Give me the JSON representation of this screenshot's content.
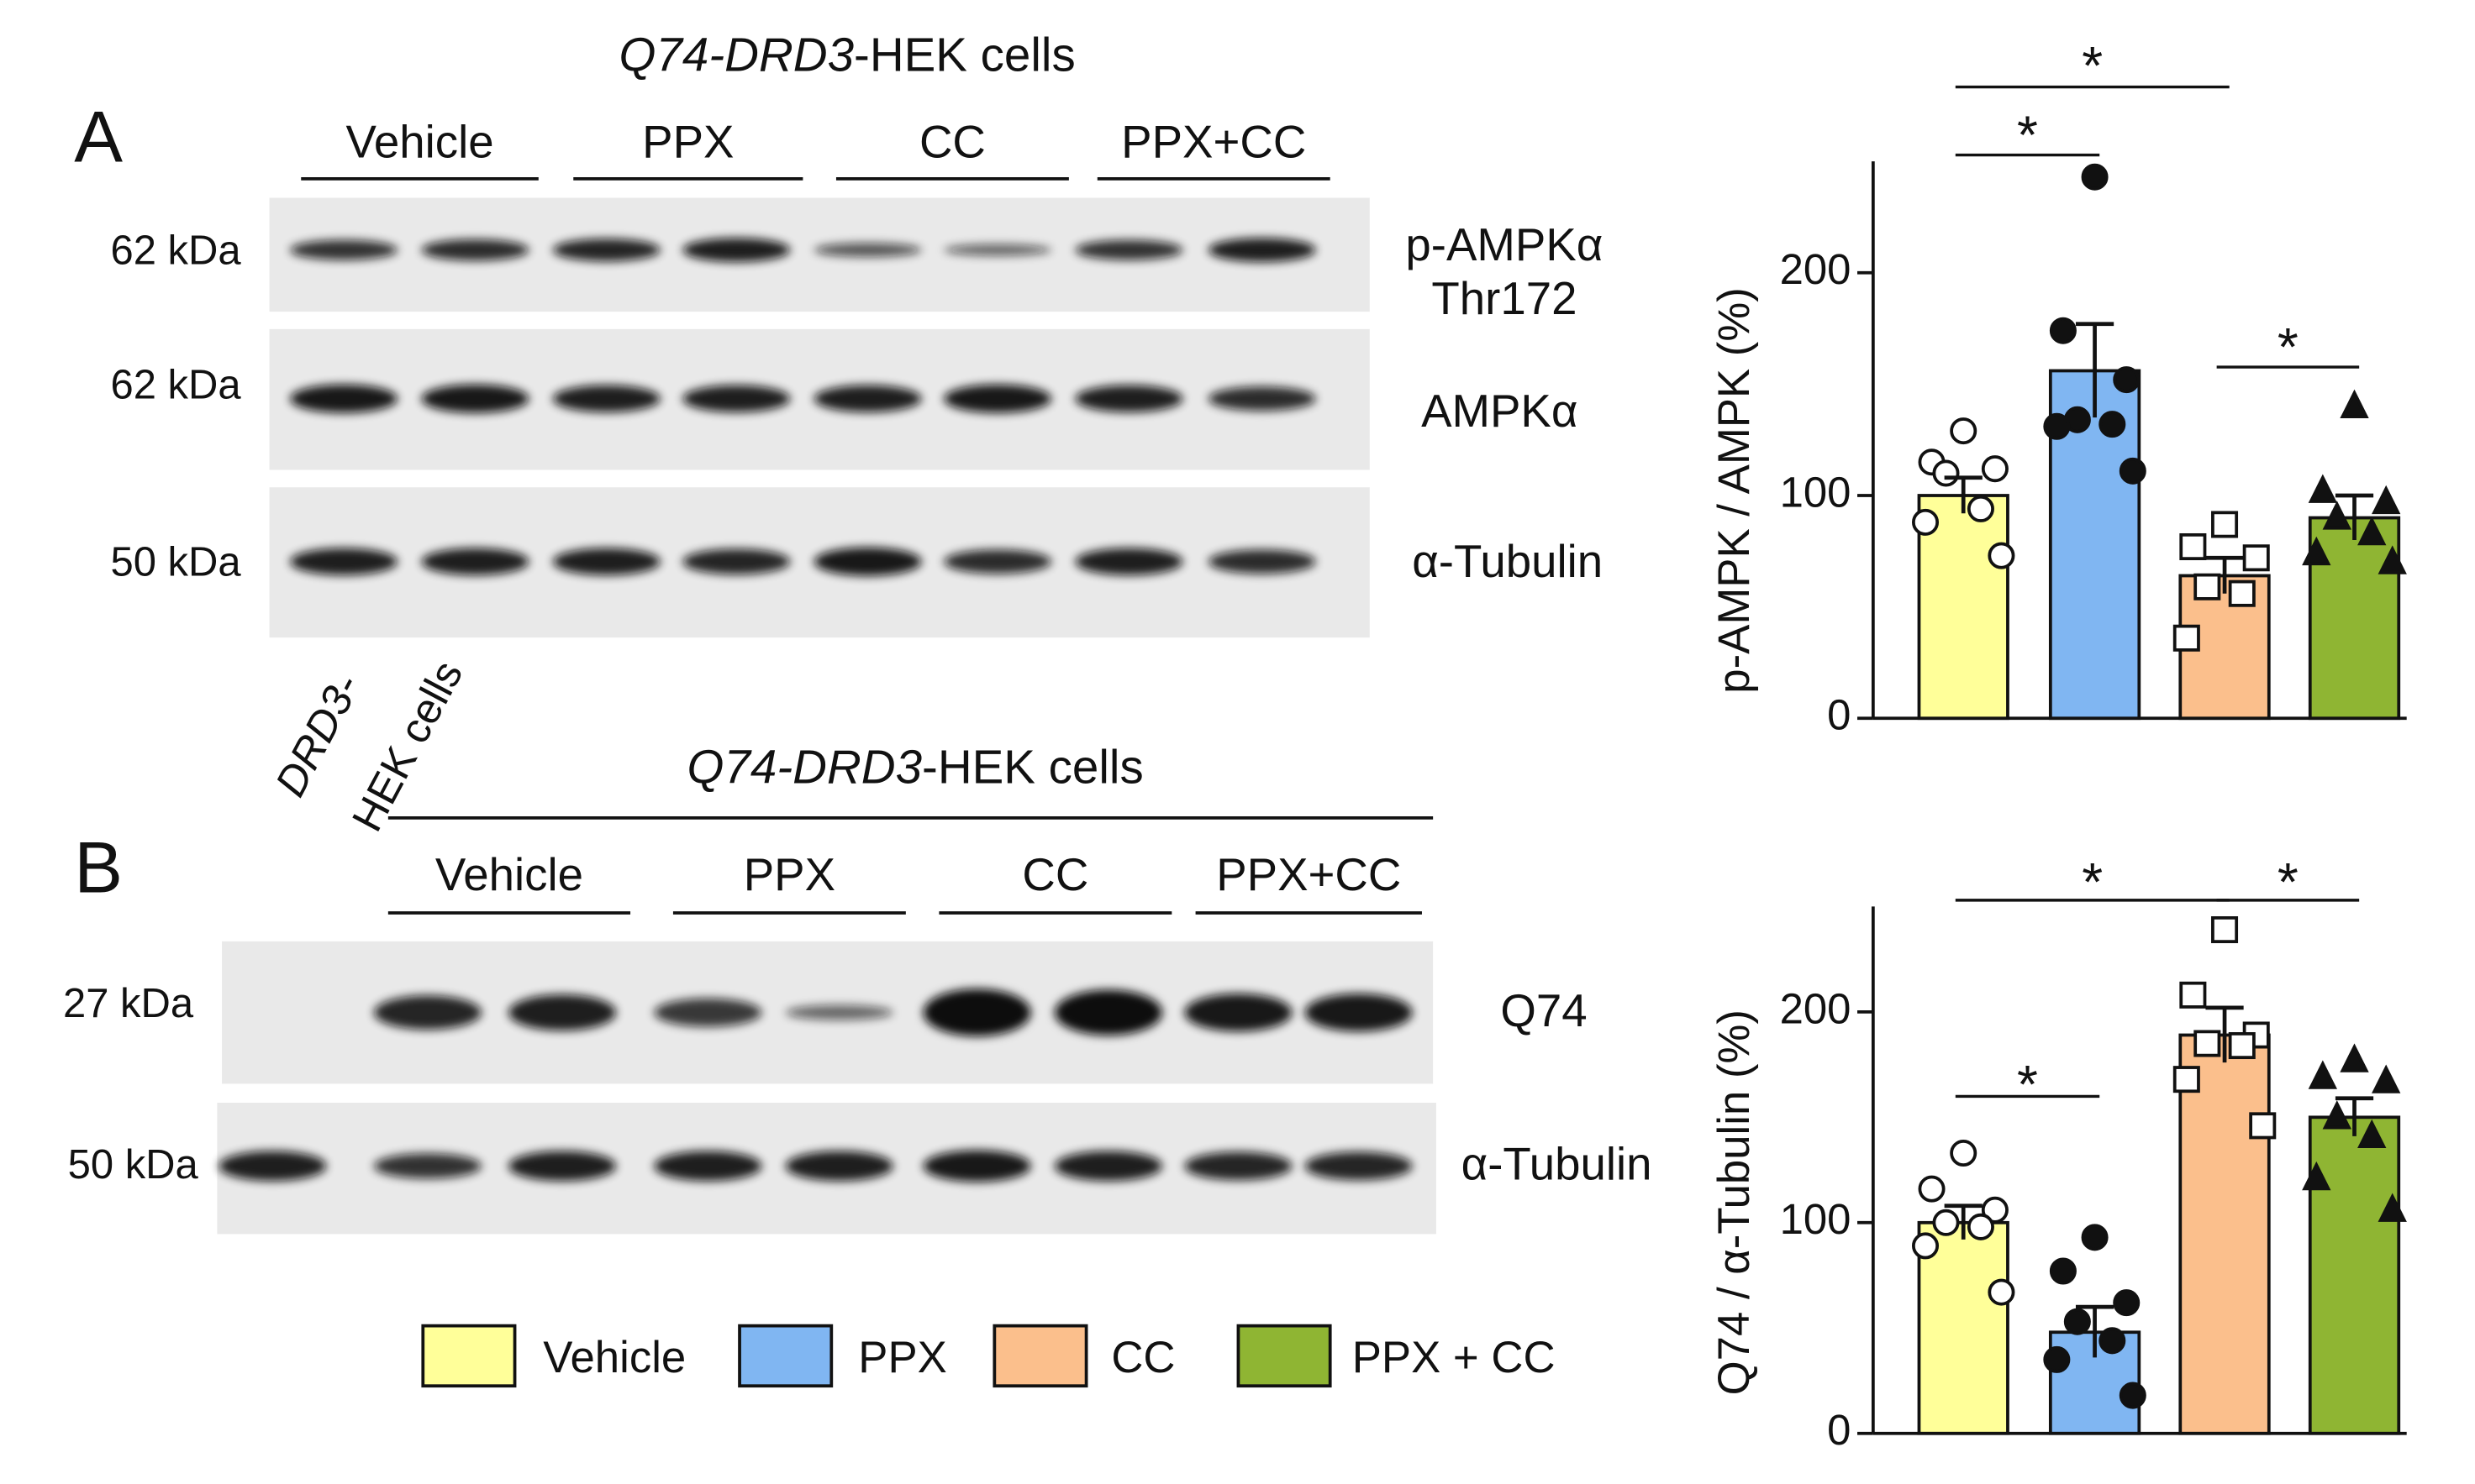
{
  "panels": [
    {
      "label": "A",
      "title_italic": "Q74-DRD3",
      "title": "-HEK cells",
      "groups": [
        "Vehicle",
        "PPX",
        "CC",
        "PPX+CC"
      ],
      "rows": [
        {
          "size": "62 kDa",
          "protein": [
            "p-AMPKα",
            "Thr172"
          ]
        },
        {
          "size": "62 kDa",
          "protein": [
            "AMPKα"
          ]
        },
        {
          "size": "50 kDa",
          "protein": [
            "α-Tubulin"
          ]
        }
      ]
    },
    {
      "label": "B",
      "control": [
        "DRD3-",
        "HEK cells"
      ],
      "title_italic": "Q74-DRD3",
      "title": "-HEK cells",
      "groups": [
        "Vehicle",
        "PPX",
        "CC",
        "PPX+CC"
      ],
      "rows": [
        {
          "size": "27 kDa",
          "protein": [
            "Q74"
          ]
        },
        {
          "size": "50 kDa",
          "protein": [
            "α-Tubulin"
          ]
        }
      ]
    }
  ],
  "legend": {
    "labels": [
      "Vehicle",
      "PPX",
      "CC",
      "PPX + CC"
    ]
  },
  "chart_data": [
    {
      "type": "bar",
      "ylabel": "p-AMPK / AMPK (%)",
      "values": [
        100,
        156,
        64,
        90
      ],
      "errors": [
        8,
        21,
        8,
        10
      ],
      "colors": [
        "#ffff99",
        "#80b6f2",
        "#fbbf8c",
        "#8fb533"
      ],
      "markers": [
        "open-circle",
        "filled-circle",
        "open-square",
        "filled-triangle"
      ],
      "points": [
        [
          129,
          115,
          112,
          110,
          94,
          88,
          73
        ],
        [
          243,
          174,
          152,
          134,
          132,
          131,
          111
        ],
        [
          87,
          77,
          72,
          59,
          56,
          36
        ],
        [
          140,
          102,
          97,
          90,
          83,
          74,
          70
        ]
      ],
      "ylim": [
        0,
        250
      ],
      "yticks": [
        0,
        100,
        200
      ],
      "significance": [
        {
          "groups": [
            0,
            2
          ],
          "label": "*"
        },
        {
          "groups": [
            0,
            1
          ],
          "label": "*"
        },
        {
          "groups": [
            2,
            3
          ],
          "label": "*"
        }
      ]
    },
    {
      "type": "bar",
      "ylabel": "Q74 / α-Tubulin (%)",
      "values": [
        100,
        48,
        189,
        150
      ],
      "errors": [
        8,
        12,
        13,
        9
      ],
      "colors": [
        "#ffff99",
        "#80b6f2",
        "#fbbf8c",
        "#8fb533"
      ],
      "markers": [
        "open-circle",
        "filled-circle",
        "open-square",
        "filled-triangle"
      ],
      "points": [
        [
          133,
          116,
          106,
          100,
          98,
          89,
          67
        ],
        [
          93,
          77,
          62,
          53,
          44,
          35,
          18
        ],
        [
          239,
          208,
          189,
          185,
          184,
          168,
          146
        ],
        [
          177,
          169,
          167,
          150,
          141,
          121,
          106
        ]
      ],
      "ylim": [
        0,
        250
      ],
      "yticks": [
        0,
        100,
        200
      ],
      "significance": [
        {
          "groups": [
            0,
            2
          ],
          "label": "*"
        },
        {
          "groups": [
            2,
            3
          ],
          "label": "*"
        },
        {
          "groups": [
            0,
            1
          ],
          "label": "*"
        }
      ]
    }
  ]
}
